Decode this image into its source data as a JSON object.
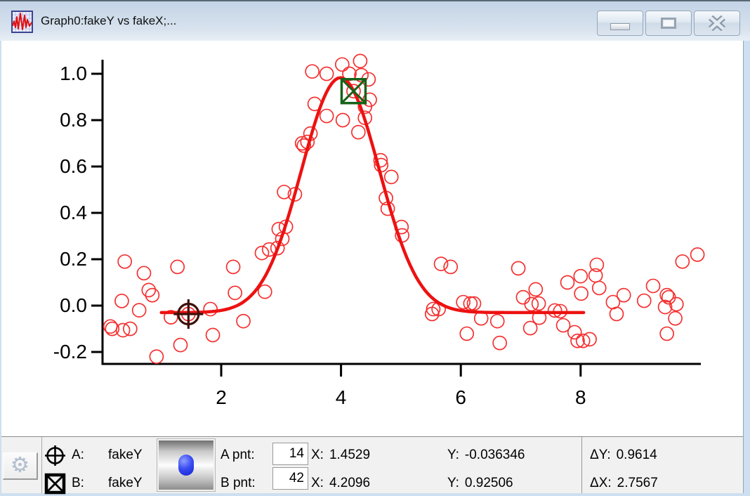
{
  "window": {
    "title": "Graph0:fakeY vs fakeX;...",
    "app_icon": "graph-waveform",
    "controls": [
      "minimize",
      "restore",
      "close"
    ]
  },
  "info_bar": {
    "gear_icon": "⚙",
    "cursor_a": {
      "icon": "circle-crosshair",
      "label": "A:",
      "trace": "fakeY",
      "pnt_label": "A pnt:",
      "pnt_value": "14",
      "x_label": "X:",
      "x_value": "1.4529",
      "y_label": "Y:",
      "y_value": "-0.036346"
    },
    "cursor_b": {
      "icon": "box-x",
      "label": "B:",
      "trace": "fakeY",
      "pnt_label": "B pnt:",
      "pnt_value": "42",
      "x_label": "X:",
      "x_value": "4.2096",
      "y_label": "Y:",
      "y_value": "0.92506"
    },
    "delta": {
      "dy_label": "ΔY:",
      "dy_value": "0.9614",
      "dx_label": "ΔX:",
      "dx_value": "2.7567"
    }
  },
  "chart_data": {
    "type": "scatter",
    "title": "",
    "xlabel": "",
    "ylabel": "",
    "xlim": [
      0,
      10.05
    ],
    "ylim": [
      -0.2515,
      1.062
    ],
    "x_ticks": [
      2,
      4,
      6,
      8
    ],
    "y_ticks": [
      1.0,
      0.8,
      0.6,
      0.4,
      0.2,
      0.0,
      -0.2
    ],
    "grid": false,
    "legend": false,
    "marker_color": "#f53030",
    "curve_color": "#ed1111",
    "series": [
      {
        "name": "fakeY vs fakeX",
        "type": "scatter",
        "marker": "open-circle",
        "points": [
          [
            0.15,
            -0.09
          ],
          [
            0.18,
            -0.1
          ],
          [
            0.34,
            0.02
          ],
          [
            0.36,
            -0.106
          ],
          [
            0.39,
            0.19
          ],
          [
            0.48,
            -0.1
          ],
          [
            0.63,
            -0.02
          ],
          [
            0.71,
            0.14
          ],
          [
            0.79,
            0.067
          ],
          [
            0.85,
            0.045
          ],
          [
            0.92,
            -0.22
          ],
          [
            1.16,
            -0.05
          ],
          [
            1.27,
            0.167
          ],
          [
            1.32,
            -0.17
          ],
          [
            1.4529,
            -0.036346
          ],
          [
            1.82,
            -0.015
          ],
          [
            1.86,
            -0.127
          ],
          [
            2.2,
            0.167
          ],
          [
            2.23,
            0.055
          ],
          [
            2.37,
            -0.067
          ],
          [
            2.68,
            0.227
          ],
          [
            2.73,
            0.06
          ],
          [
            2.8,
            0.242
          ],
          [
            2.94,
            0.248
          ],
          [
            2.96,
            0.33
          ],
          [
            3.02,
            0.288
          ],
          [
            3.05,
            0.49
          ],
          [
            3.08,
            0.34
          ],
          [
            3.23,
            0.48
          ],
          [
            3.35,
            0.7
          ],
          [
            3.38,
            0.69
          ],
          [
            3.44,
            0.706
          ],
          [
            3.49,
            0.742
          ],
          [
            3.52,
            1.01
          ],
          [
            3.56,
            0.87
          ],
          [
            3.76,
            1.0
          ],
          [
            3.76,
            0.818
          ],
          [
            4.02,
            1.04
          ],
          [
            4.03,
            0.8
          ],
          [
            4.14,
            1.0
          ],
          [
            4.2096,
            0.92506
          ],
          [
            4.29,
            0.748
          ],
          [
            4.32,
            1.055
          ],
          [
            4.34,
            0.994
          ],
          [
            4.4,
            0.858
          ],
          [
            4.4,
            0.81
          ],
          [
            4.46,
            0.976
          ],
          [
            4.48,
            0.888
          ],
          [
            4.66,
            0.627
          ],
          [
            4.67,
            0.606
          ],
          [
            4.75,
            0.464
          ],
          [
            4.78,
            0.418
          ],
          [
            4.84,
            0.555
          ],
          [
            5.01,
            0.339
          ],
          [
            5.02,
            0.303
          ],
          [
            5.52,
            -0.036
          ],
          [
            5.54,
            -0.015
          ],
          [
            5.63,
            -0.015
          ],
          [
            5.67,
            0.18
          ],
          [
            5.83,
            0.167
          ],
          [
            6.04,
            0.015
          ],
          [
            6.1,
            -0.121
          ],
          [
            6.16,
            0.009
          ],
          [
            6.22,
            0.009
          ],
          [
            6.34,
            -0.055
          ],
          [
            6.61,
            -0.067
          ],
          [
            6.65,
            -0.161
          ],
          [
            6.96,
            0.161
          ],
          [
            7.04,
            0.036
          ],
          [
            7.16,
            -0.097
          ],
          [
            7.18,
            0.006
          ],
          [
            7.25,
            0.07
          ],
          [
            7.3,
            0.009
          ],
          [
            7.31,
            -0.052
          ],
          [
            7.57,
            -0.021
          ],
          [
            7.66,
            -0.024
          ],
          [
            7.71,
            -0.085
          ],
          [
            7.78,
            0.1
          ],
          [
            7.9,
            -0.115
          ],
          [
            7.95,
            -0.152
          ],
          [
            8.0,
            0.127
          ],
          [
            8.01,
            0.052
          ],
          [
            8.04,
            -0.152
          ],
          [
            8.15,
            -0.145
          ],
          [
            8.25,
            0.13
          ],
          [
            8.27,
            0.176
          ],
          [
            8.31,
            0.076
          ],
          [
            8.54,
            0.015
          ],
          [
            8.6,
            -0.036
          ],
          [
            8.72,
            0.045
          ],
          [
            9.06,
            0.021
          ],
          [
            9.21,
            0.085
          ],
          [
            9.41,
            -0.006
          ],
          [
            9.44,
            0.045
          ],
          [
            9.44,
            -0.121
          ],
          [
            9.47,
            0.036
          ],
          [
            9.58,
            -0.055
          ],
          [
            9.6,
            0.006
          ],
          [
            9.7,
            0.19
          ],
          [
            9.95,
            0.22
          ]
        ]
      },
      {
        "name": "gaussian-fit",
        "type": "line",
        "gaussian": {
          "baseline": -0.03,
          "amplitude": 1.013,
          "center": 3.99,
          "width": 0.92
        },
        "x_range": [
          1.0,
          8.05
        ]
      }
    ],
    "cursors": {
      "A": {
        "x": 1.4529,
        "y": -0.036346,
        "shape": "circle-crosshair",
        "color": "#3d100a"
      },
      "B": {
        "x": 4.2096,
        "y": 0.92506,
        "shape": "box-x",
        "color": "#17621a"
      }
    }
  }
}
